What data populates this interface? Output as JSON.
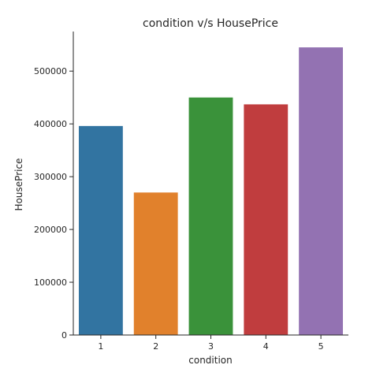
{
  "chart_data": {
    "type": "bar",
    "title": "condition v/s HousePrice",
    "xlabel": "condition",
    "ylabel": "HousePrice",
    "categories": [
      "1",
      "2",
      "3",
      "4",
      "5"
    ],
    "values": [
      396000,
      270000,
      450000,
      437000,
      545000
    ],
    "colors": [
      "#3274a1",
      "#e1812c",
      "#3a923a",
      "#c03d3e",
      "#9372b2"
    ],
    "ylim": [
      0,
      575000
    ],
    "yticks": [
      0,
      100000,
      200000,
      300000,
      400000,
      500000
    ],
    "ytick_labels": [
      "0",
      "100000",
      "200000",
      "300000",
      "400000",
      "500000"
    ],
    "grid": false,
    "legend": "none"
  }
}
